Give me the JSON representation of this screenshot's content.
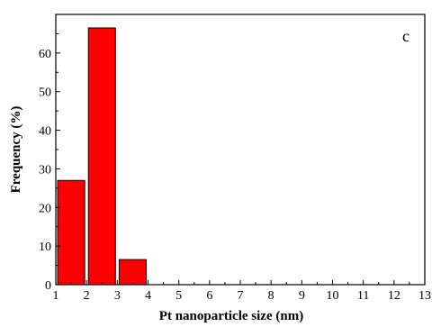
{
  "chart_data": {
    "type": "bar",
    "panel_label": "c",
    "title": "",
    "xlabel": "Pt nanoparticle size (nm)",
    "ylabel": "Frequency (%)",
    "xlim": [
      1,
      13
    ],
    "ylim": [
      0,
      70
    ],
    "xticks": [
      1,
      2,
      3,
      4,
      5,
      6,
      7,
      8,
      9,
      10,
      11,
      12,
      13
    ],
    "yticks": [
      0,
      10,
      20,
      30,
      40,
      50,
      60
    ],
    "bin_width": 1,
    "bars": [
      {
        "start": 1,
        "end": 2,
        "value": 27
      },
      {
        "start": 2,
        "end": 3,
        "value": 66.5
      },
      {
        "start": 3,
        "end": 4,
        "value": 6.5
      }
    ],
    "bar_color": "#ff0000",
    "grid": false,
    "legend": "none"
  }
}
